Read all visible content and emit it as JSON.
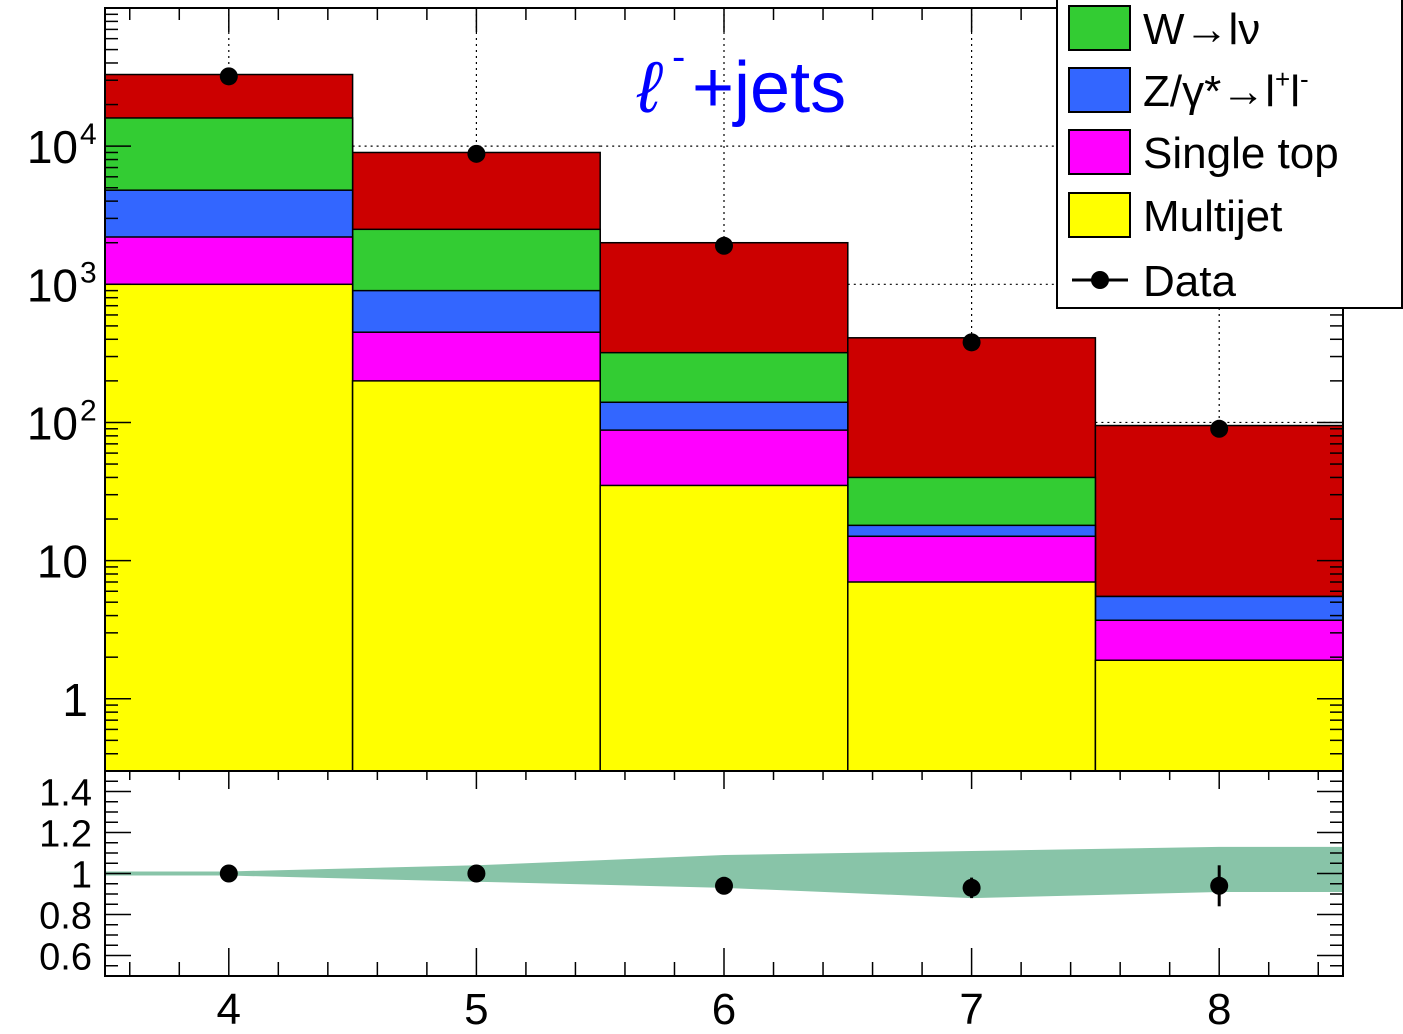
{
  "chart_data": [
    {
      "type": "bar",
      "stacked": true,
      "log_y": true,
      "annotation": {
        "lepton": "ℓ",
        "charge": "-",
        "rest": "+jets",
        "color": "#0000ff"
      },
      "categories": [
        4,
        5,
        6,
        7,
        8
      ],
      "ylim": [
        0.3,
        100000
      ],
      "ytick_labels": [
        {
          "value": 1,
          "label": "1"
        },
        {
          "value": 10,
          "label": "10"
        },
        {
          "value": 100,
          "label": "10",
          "sup": "2"
        },
        {
          "value": 1000,
          "label": "10",
          "sup": "3"
        },
        {
          "value": 10000,
          "label": "10",
          "sup": "4"
        }
      ],
      "grid": true,
      "legend_position": "top-right",
      "legend": [
        {
          "key": "wlnu",
          "label": "W→lν"
        },
        {
          "key": "zll",
          "label": "Z/γ*→l",
          "sup1": "+",
          "mid": "l",
          "sup2": "-"
        },
        {
          "key": "single_top",
          "label": "Single top"
        },
        {
          "key": "multijet",
          "label": "Multijet"
        },
        {
          "key": "data",
          "label": "Data"
        }
      ],
      "series": [
        {
          "key": "multijet",
          "color": "#ffff00",
          "cumulative": [
            1000,
            200,
            35,
            7,
            1.9
          ]
        },
        {
          "key": "single_top",
          "color": "#ff00ff",
          "cumulative": [
            2200,
            450,
            88,
            15,
            3.7
          ]
        },
        {
          "key": "zll",
          "color": "#3366ff",
          "cumulative": [
            4800,
            900,
            140,
            18,
            5.5
          ]
        },
        {
          "key": "wlnu",
          "color": "#33cc33",
          "cumulative": [
            16000,
            2500,
            320,
            40,
            5.5
          ]
        },
        {
          "key": "ttbar",
          "color": "#cc0000",
          "cumulative": [
            33000,
            9000,
            2000,
            410,
            95
          ]
        }
      ],
      "data_points": {
        "x": [
          4,
          5,
          6,
          7,
          8
        ],
        "y": [
          32000,
          8800,
          1900,
          380,
          90
        ]
      }
    },
    {
      "type": "scatter",
      "panel": "ratio",
      "xlim": [
        3.5,
        8.5
      ],
      "ylim": [
        0.5,
        1.5
      ],
      "x_tick_labels": [
        "4",
        "5",
        "6",
        "7",
        "8"
      ],
      "y_tick_labels": [
        {
          "value": 0.6,
          "label": "0.6"
        },
        {
          "value": 0.8,
          "label": "0.8"
        },
        {
          "value": 1.0,
          "label": "1"
        },
        {
          "value": 1.2,
          "label": "1.2"
        },
        {
          "value": 1.4,
          "label": "1.4"
        }
      ],
      "band_color": "#88c4a8",
      "band": {
        "x": [
          3.5,
          4,
          5,
          6,
          7,
          8,
          8.5
        ],
        "low": [
          0.99,
          0.99,
          0.96,
          0.93,
          0.88,
          0.91,
          0.91
        ],
        "high": [
          1.01,
          1.01,
          1.04,
          1.09,
          1.11,
          1.13,
          1.13
        ]
      },
      "points": {
        "x": [
          4,
          5,
          6,
          7,
          8
        ],
        "y": [
          1.0,
          1.0,
          0.94,
          0.93,
          0.94
        ],
        "err": [
          0.005,
          0.01,
          0.02,
          0.05,
          0.1
        ]
      }
    }
  ]
}
